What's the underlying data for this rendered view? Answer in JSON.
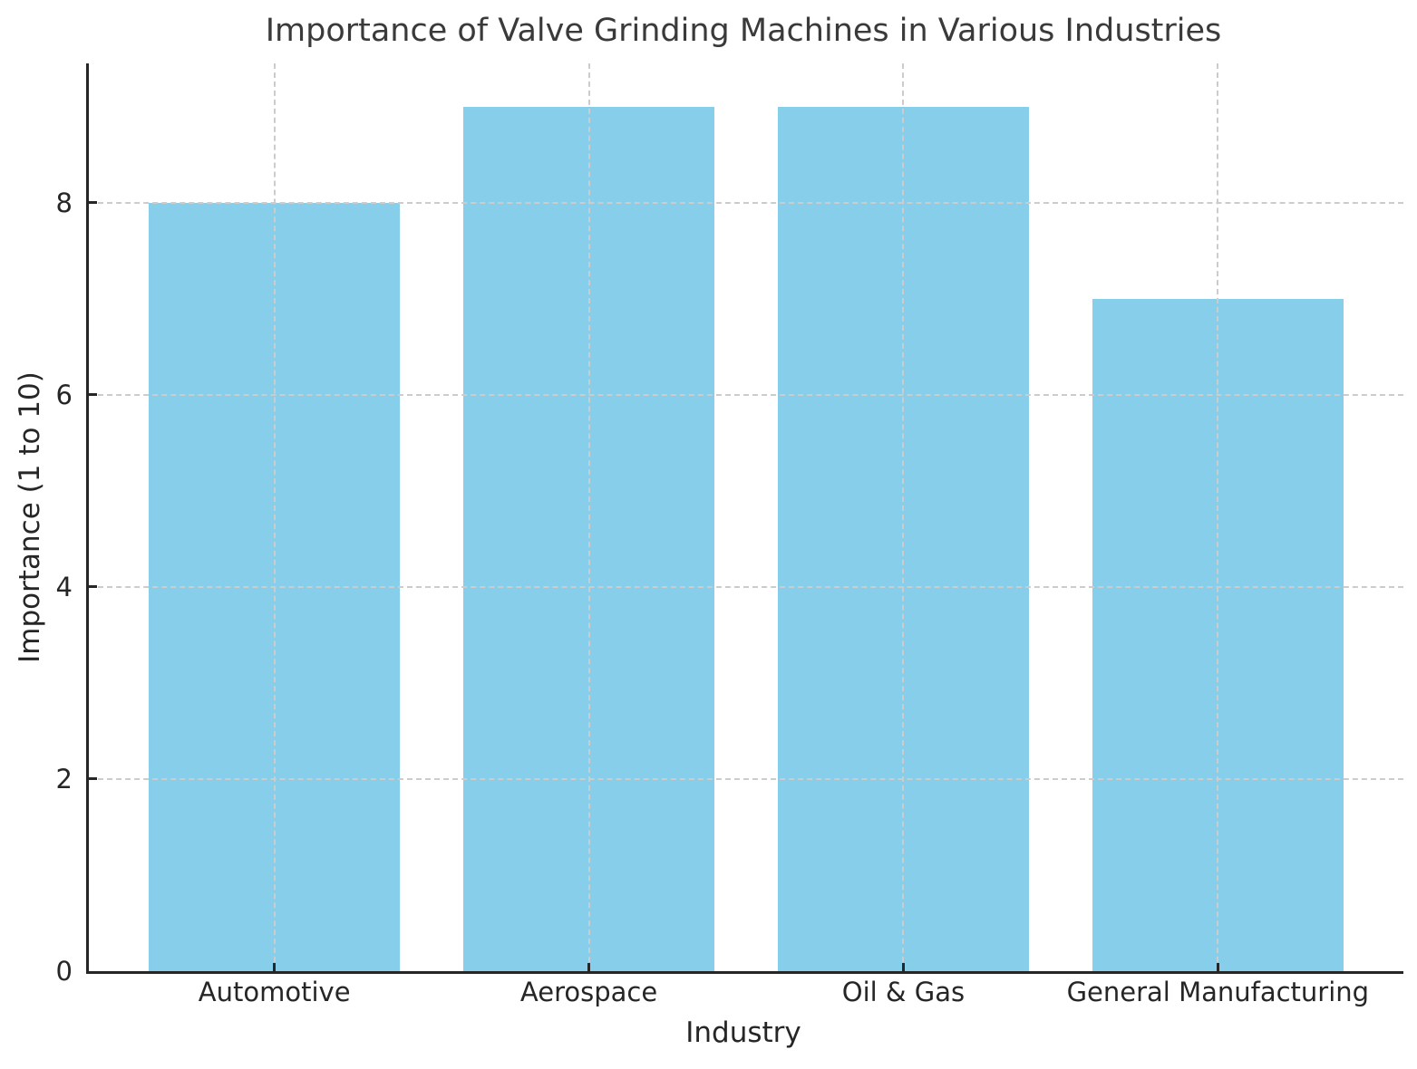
{
  "chart_data": {
    "type": "bar",
    "title": "Importance of Valve Grinding Machines in Various Industries",
    "xlabel": "Industry",
    "ylabel": "Importance (1 to 10)",
    "categories": [
      "Automotive",
      "Aerospace",
      "Oil & Gas",
      "General Manufacturing"
    ],
    "values": [
      8,
      9,
      9,
      7
    ],
    "yticks": [
      0,
      2,
      4,
      6,
      8
    ],
    "ylim": [
      0,
      9.45
    ],
    "bar_width": 0.8,
    "grid": true,
    "grid_style": "dashed",
    "legend": "none",
    "colors": {
      "bar": "#87CEEB",
      "grid": "#cccccc",
      "axis": "#262626",
      "title": "#3a3a3a",
      "background": "#ffffff"
    }
  }
}
